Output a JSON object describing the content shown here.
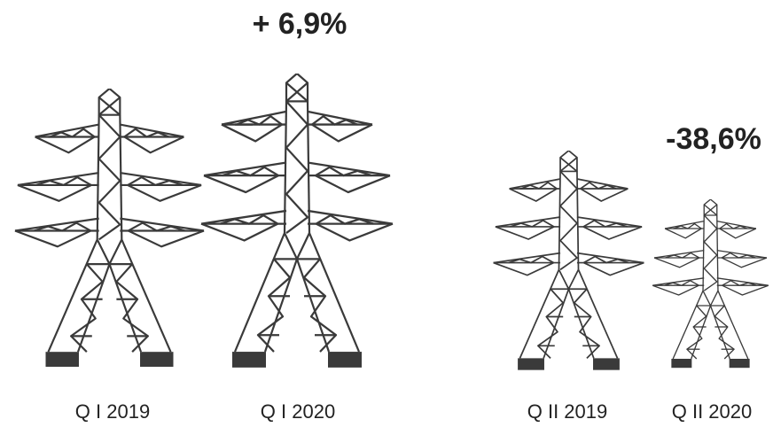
{
  "annotations": [
    "+ 6,9%",
    "-38,6%"
  ],
  "labels": [
    "Q I 2019",
    "Q I 2020",
    "Q II 2019",
    "Q II 2020"
  ]
}
